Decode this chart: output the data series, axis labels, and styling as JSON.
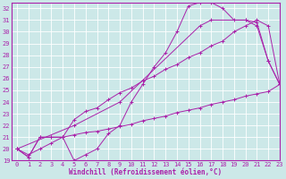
{
  "xlabel": "Windchill (Refroidissement éolien,°C)",
  "bg_color": "#cce8e8",
  "line_color": "#aa22aa",
  "grid_color": "#ffffff",
  "xlim": [
    -0.5,
    23
  ],
  "ylim": [
    19,
    32.5
  ],
  "xticks": [
    0,
    1,
    2,
    3,
    4,
    5,
    6,
    7,
    8,
    9,
    10,
    11,
    12,
    13,
    14,
    15,
    16,
    17,
    18,
    19,
    20,
    21,
    22,
    23
  ],
  "yticks": [
    19,
    20,
    21,
    22,
    23,
    24,
    25,
    26,
    27,
    28,
    29,
    30,
    31,
    32
  ],
  "curve1_x": [
    0,
    1,
    2,
    3,
    4,
    5,
    6,
    7,
    8,
    9,
    10,
    11,
    12,
    13,
    14,
    15,
    16,
    17,
    18,
    19,
    20,
    21,
    22,
    23
  ],
  "curve1_y": [
    20.0,
    19.3,
    21.0,
    21.0,
    21.0,
    19.0,
    19.5,
    20.0,
    21.3,
    22.0,
    24.0,
    25.5,
    27.0,
    28.2,
    30.0,
    32.2,
    32.5,
    32.5,
    32.0,
    31.0,
    31.0,
    30.5,
    27.5,
    25.5
  ],
  "curve2_x": [
    0,
    1,
    2,
    3,
    4,
    5,
    6,
    7,
    8,
    9,
    10,
    11,
    12,
    13,
    14,
    15,
    16,
    17,
    18,
    19,
    20,
    21,
    22,
    23
  ],
  "curve2_y": [
    20.0,
    19.3,
    21.0,
    21.0,
    21.0,
    22.5,
    23.2,
    23.5,
    24.2,
    24.8,
    25.2,
    25.8,
    26.2,
    26.8,
    27.2,
    27.8,
    28.2,
    28.8,
    29.2,
    30.0,
    30.5,
    31.0,
    30.5,
    25.5
  ],
  "curve3_x": [
    0,
    5,
    9,
    16,
    17,
    20,
    21,
    22,
    23
  ],
  "curve3_y": [
    20.0,
    22.0,
    24.0,
    30.5,
    31.0,
    31.0,
    30.8,
    27.5,
    25.5
  ],
  "curve4_x": [
    0,
    1,
    2,
    3,
    4,
    5,
    6,
    7,
    8,
    9,
    10,
    11,
    12,
    13,
    14,
    15,
    16,
    17,
    18,
    19,
    20,
    21,
    22,
    23
  ],
  "curve4_y": [
    20.0,
    19.5,
    20.0,
    20.5,
    21.0,
    21.2,
    21.4,
    21.5,
    21.7,
    21.9,
    22.1,
    22.4,
    22.6,
    22.8,
    23.1,
    23.3,
    23.5,
    23.8,
    24.0,
    24.2,
    24.5,
    24.7,
    24.9,
    25.5
  ],
  "xlabel_fontsize": 5.5,
  "tick_fontsize": 5,
  "lw": 0.7,
  "ms": 2.5
}
